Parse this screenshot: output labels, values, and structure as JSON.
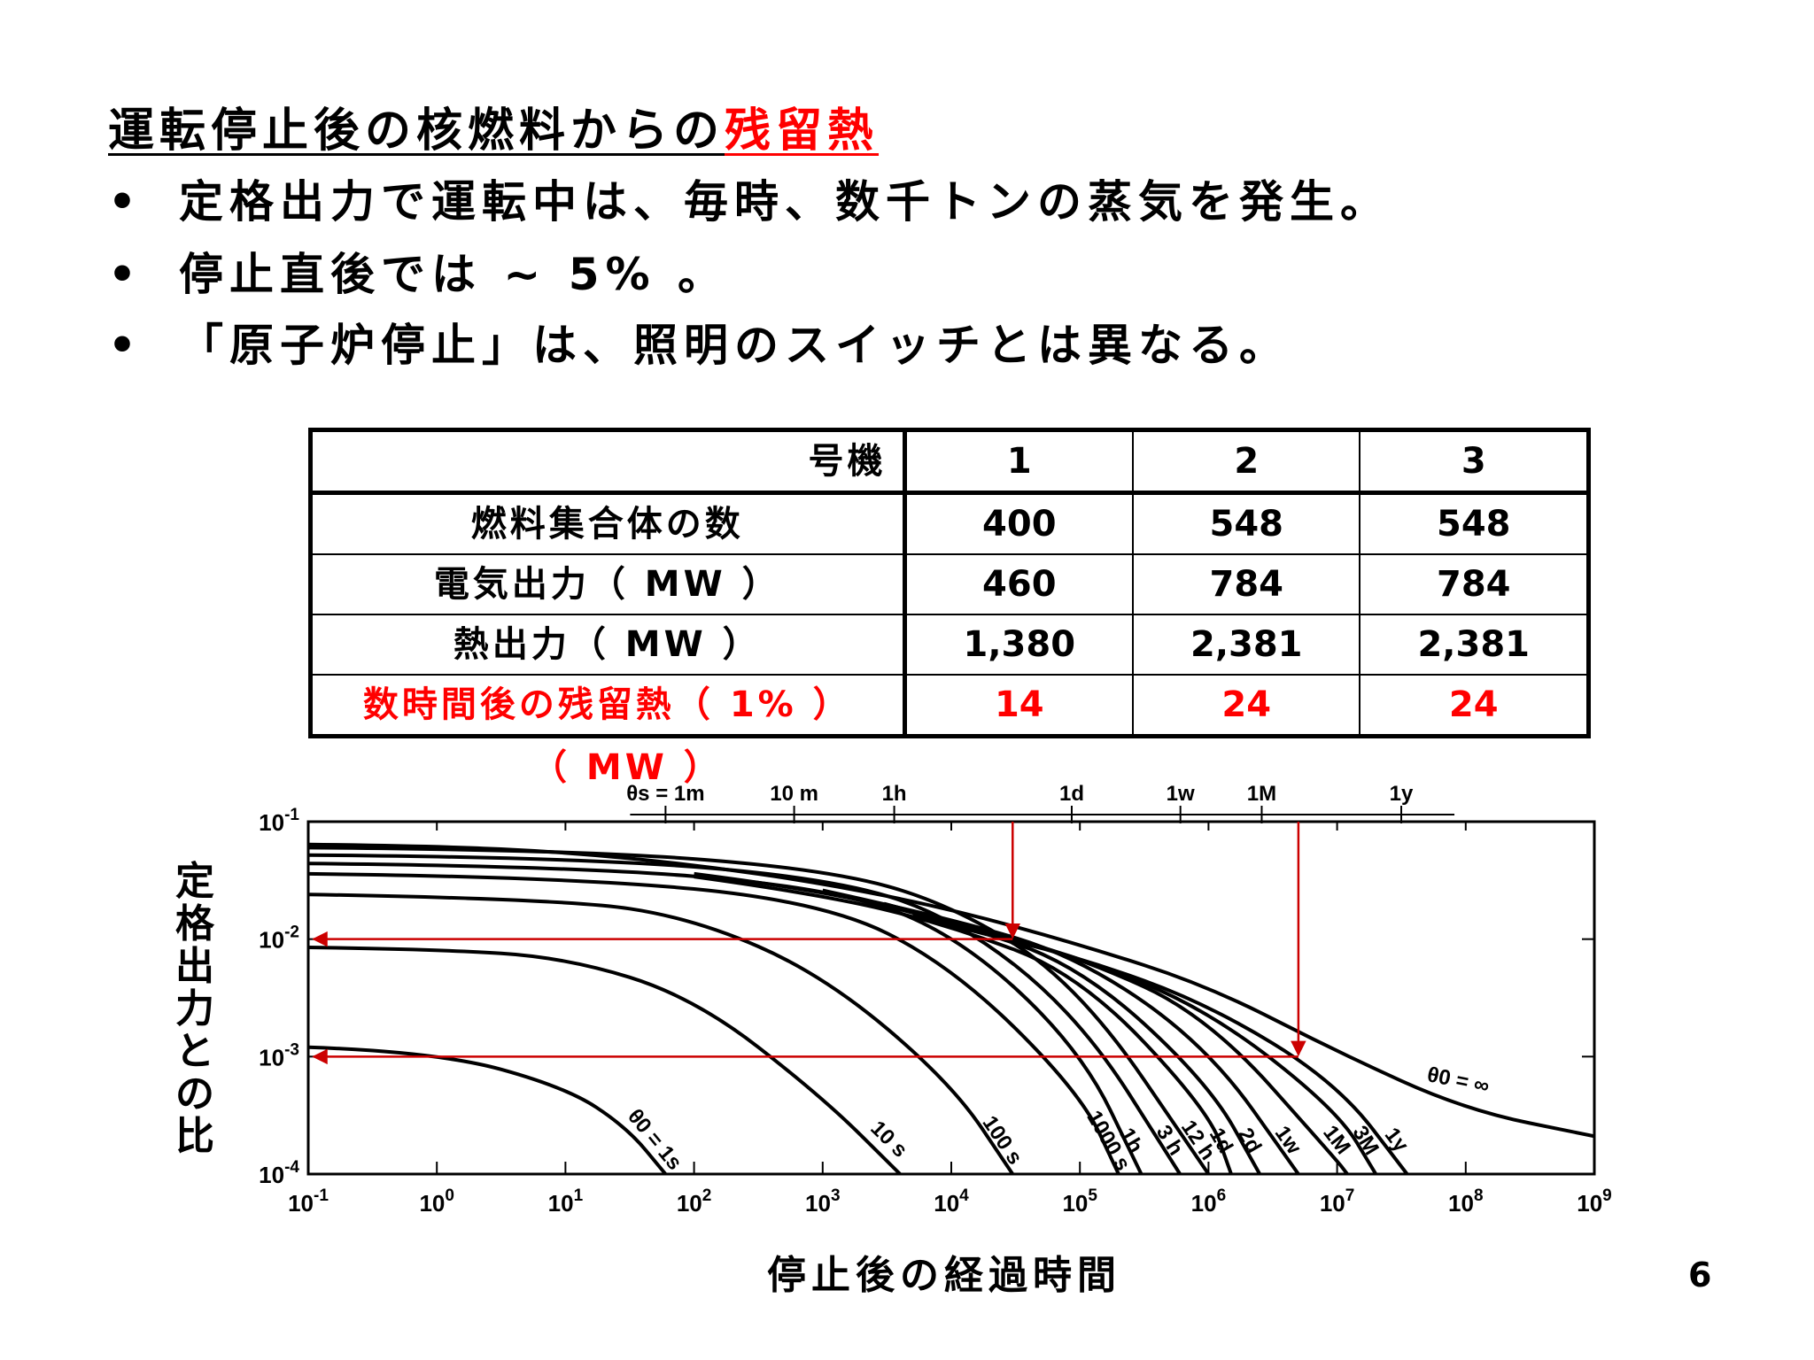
{
  "title": {
    "part1": "運転停止後の核燃料からの",
    "part2": "残留熱"
  },
  "bullets": [
    "定格出力で運転中は、毎時、数千トンの蒸気を発生。",
    "停止直後では ~ 5% 。",
    "「原子炉停止」は、照明のスイッチとは異なる。"
  ],
  "bullet_char": "•",
  "table": {
    "header": {
      "label": "号機",
      "units": [
        "1",
        "2",
        "3"
      ]
    },
    "rows": [
      {
        "label": "燃料集合体の数",
        "values": [
          "400",
          "548",
          "548"
        ]
      },
      {
        "label": "電気出力（ MW ）",
        "values": [
          "460",
          "784",
          "784"
        ]
      },
      {
        "label": "熱出力（ MW ）",
        "values": [
          "1,380",
          "2,381",
          "2,381"
        ]
      },
      {
        "label": "数時間後の残留熱（ 1% ）",
        "values": [
          "14",
          "24",
          "24"
        ],
        "label_line2": "（ MW ）",
        "color": "#ff0000"
      }
    ]
  },
  "chart_data": {
    "type": "line",
    "xlabel": "停止後の経過時間",
    "ylabel": "定格出力との比",
    "x_scale": "log",
    "y_scale": "log",
    "xlim": [
      0.1,
      1000000000
    ],
    "ylim": [
      0.0001,
      0.1
    ],
    "x_ticks": [
      "10-1",
      "100",
      "101",
      "102",
      "103",
      "104",
      "105",
      "106",
      "107",
      "108",
      "109"
    ],
    "y_ticks": [
      "10-1",
      "10-2",
      "10-3",
      "10-4"
    ],
    "top_axis_ticks": [
      "θs = 1m",
      "10 m",
      "1h",
      "1d",
      "1w",
      "1M",
      "1y"
    ],
    "series": [
      {
        "name": "θ0 = 1s",
        "x": [
          0.1,
          1,
          10,
          30,
          60
        ],
        "y": [
          0.0012,
          0.0011,
          0.00055,
          0.00025,
          0.0001
        ]
      },
      {
        "name": "10 s",
        "x": [
          0.1,
          1,
          10,
          100,
          1000,
          4000
        ],
        "y": [
          0.0085,
          0.0082,
          0.007,
          0.0032,
          0.00045,
          0.0001
        ]
      },
      {
        "name": "100 s",
        "x": [
          0.1,
          10,
          100,
          1000,
          10000,
          30000
        ],
        "y": [
          0.024,
          0.022,
          0.015,
          0.005,
          0.0006,
          0.0001
        ]
      },
      {
        "name": "1000 s",
        "x": [
          0.1,
          10,
          1000,
          10000,
          100000,
          200000
        ],
        "y": [
          0.036,
          0.034,
          0.021,
          0.006,
          0.0005,
          0.0001
        ]
      },
      {
        "name": "1h",
        "x": [
          0.1,
          10,
          1000,
          10000,
          100000,
          300000
        ],
        "y": [
          0.044,
          0.042,
          0.028,
          0.012,
          0.0012,
          0.0001
        ]
      },
      {
        "name": "3 h",
        "x": [
          0.1,
          10,
          1000,
          10000,
          100000,
          600000
        ],
        "y": [
          0.052,
          0.05,
          0.034,
          0.016,
          0.0022,
          0.0001
        ]
      },
      {
        "name": "12 h",
        "x": [
          0.1,
          10,
          1000,
          10000,
          100000,
          1000000
        ],
        "y": [
          0.06,
          0.058,
          0.04,
          0.02,
          0.004,
          0.0001
        ]
      },
      {
        "name": "1d",
        "x": [
          100,
          1000,
          10000,
          100000,
          1000000,
          1500000
        ],
        "y": [
          0.034,
          0.024,
          0.013,
          0.005,
          0.00035,
          0.0001
        ]
      },
      {
        "name": "2d",
        "x": [
          100,
          1000,
          10000,
          100000,
          1000000,
          2500000
        ],
        "y": [
          0.036,
          0.026,
          0.014,
          0.006,
          0.0006,
          0.0001
        ]
      },
      {
        "name": "1w",
        "x": [
          1000,
          10000,
          100000,
          1000000,
          5000000
        ],
        "y": [
          0.026,
          0.015,
          0.007,
          0.0012,
          0.0001
        ]
      },
      {
        "name": "1M",
        "x": [
          3000,
          10000,
          100000,
          1000000,
          10000000,
          12000000
        ],
        "y": [
          0.02,
          0.014,
          0.007,
          0.0022,
          0.00013,
          0.0001
        ]
      },
      {
        "name": "3M",
        "x": [
          3000,
          10000,
          100000,
          1000000,
          10000000,
          20000000
        ],
        "y": [
          0.02,
          0.014,
          0.007,
          0.0025,
          0.00035,
          0.0001
        ]
      },
      {
        "name": "1y",
        "x": [
          5000,
          10000,
          100000,
          1000000,
          10000000,
          35000000
        ],
        "y": [
          0.016,
          0.013,
          0.007,
          0.0028,
          0.0006,
          0.0001
        ]
      },
      {
        "name": "θ0 = ∞",
        "x": [
          0.1,
          1,
          10,
          100,
          1000,
          10000,
          100000,
          1000000,
          10000000,
          100000000,
          1000000000
        ],
        "y": [
          0.064,
          0.062,
          0.055,
          0.043,
          0.03,
          0.018,
          0.009,
          0.004,
          0.0011,
          0.00035,
          0.00021
        ]
      }
    ],
    "reference_lines": [
      {
        "value_y": 0.01,
        "at_x": 30000,
        "color": "#cc0000"
      },
      {
        "value_y": 0.001,
        "at_x": 5000000,
        "color": "#cc0000"
      }
    ]
  },
  "page_number": "6"
}
